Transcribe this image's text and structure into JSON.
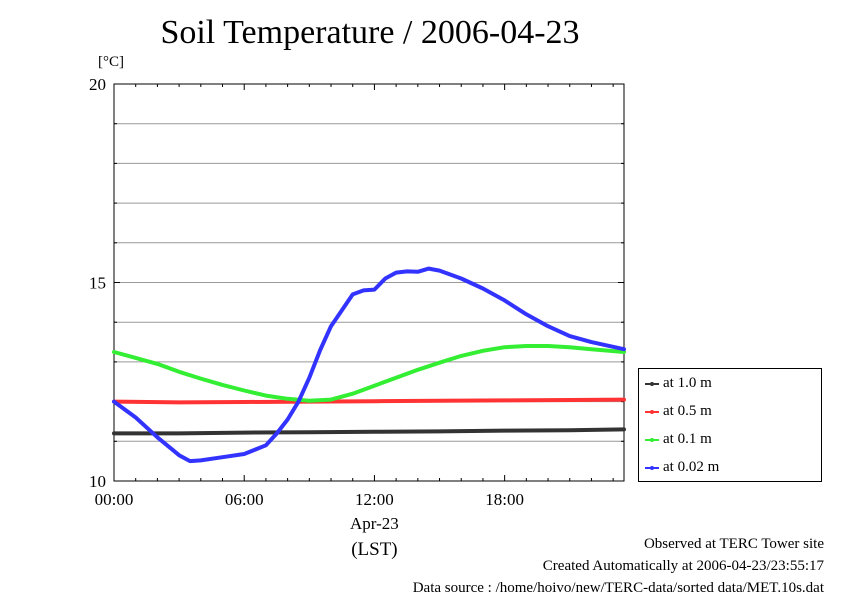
{
  "chart_data": {
    "type": "line",
    "title": "Soil Temperature / 2006-04-23",
    "ylabel": "[°C]",
    "ylim": [
      10,
      20
    ],
    "yticks": [
      10,
      15,
      20
    ],
    "xlim": [
      0,
      23.5
    ],
    "xticks": [
      {
        "value": 0,
        "label": "00:00"
      },
      {
        "value": 6,
        "label": "06:00"
      },
      {
        "value": 12,
        "label": "12:00"
      },
      {
        "value": 18,
        "label": "18:00"
      }
    ],
    "xlabel_date": "Apr-23",
    "xlabel_tz": "(LST)",
    "grid": true,
    "legend_position": "right",
    "series": [
      {
        "name": "at 1.0 m",
        "color": "#333333",
        "points": [
          [
            0,
            11.2
          ],
          [
            3,
            11.2
          ],
          [
            6,
            11.22
          ],
          [
            9,
            11.23
          ],
          [
            12,
            11.24
          ],
          [
            15,
            11.25
          ],
          [
            18,
            11.27
          ],
          [
            21,
            11.28
          ],
          [
            23.5,
            11.3
          ]
        ]
      },
      {
        "name": "at 0.5 m",
        "color": "#ff3333",
        "points": [
          [
            0,
            12.0
          ],
          [
            3,
            11.98
          ],
          [
            6,
            11.99
          ],
          [
            9,
            12.0
          ],
          [
            12,
            12.01
          ],
          [
            15,
            12.02
          ],
          [
            18,
            12.03
          ],
          [
            21,
            12.04
          ],
          [
            23.5,
            12.05
          ]
        ]
      },
      {
        "name": "at 0.1 m",
        "color": "#33ee33",
        "points": [
          [
            0,
            13.25
          ],
          [
            1,
            13.1
          ],
          [
            2,
            12.95
          ],
          [
            3,
            12.75
          ],
          [
            4,
            12.58
          ],
          [
            5,
            12.42
          ],
          [
            6,
            12.28
          ],
          [
            7,
            12.15
          ],
          [
            8,
            12.07
          ],
          [
            9,
            12.02
          ],
          [
            10,
            12.05
          ],
          [
            11,
            12.2
          ],
          [
            12,
            12.4
          ],
          [
            13,
            12.6
          ],
          [
            14,
            12.8
          ],
          [
            15,
            12.98
          ],
          [
            16,
            13.15
          ],
          [
            17,
            13.28
          ],
          [
            18,
            13.37
          ],
          [
            19,
            13.4
          ],
          [
            20,
            13.4
          ],
          [
            21,
            13.37
          ],
          [
            22,
            13.32
          ],
          [
            23.5,
            13.25
          ]
        ]
      },
      {
        "name": "at 0.02 m",
        "color": "#3333ff",
        "points": [
          [
            0,
            12.0
          ],
          [
            1,
            11.6
          ],
          [
            2,
            11.1
          ],
          [
            3,
            10.65
          ],
          [
            3.5,
            10.5
          ],
          [
            4,
            10.52
          ],
          [
            5,
            10.6
          ],
          [
            6,
            10.68
          ],
          [
            7,
            10.9
          ],
          [
            7.5,
            11.2
          ],
          [
            8,
            11.55
          ],
          [
            8.5,
            12.0
          ],
          [
            9,
            12.6
          ],
          [
            9.5,
            13.3
          ],
          [
            10,
            13.9
          ],
          [
            10.5,
            14.3
          ],
          [
            11,
            14.7
          ],
          [
            11.5,
            14.8
          ],
          [
            12,
            14.82
          ],
          [
            12.5,
            15.1
          ],
          [
            13,
            15.25
          ],
          [
            13.5,
            15.28
          ],
          [
            14,
            15.27
          ],
          [
            14.5,
            15.35
          ],
          [
            15,
            15.3
          ],
          [
            16,
            15.1
          ],
          [
            17,
            14.85
          ],
          [
            18,
            14.55
          ],
          [
            19,
            14.2
          ],
          [
            20,
            13.9
          ],
          [
            21,
            13.65
          ],
          [
            22,
            13.5
          ],
          [
            23,
            13.38
          ],
          [
            23.5,
            13.32
          ]
        ]
      }
    ]
  },
  "footer": {
    "line1": "Observed at TERC Tower site",
    "line2": "Created Automatically at 2006-04-23/23:55:17",
    "line3": "Data source : /home/hoivo/new/TERC-data/sorted  data/MET.10s.dat"
  }
}
